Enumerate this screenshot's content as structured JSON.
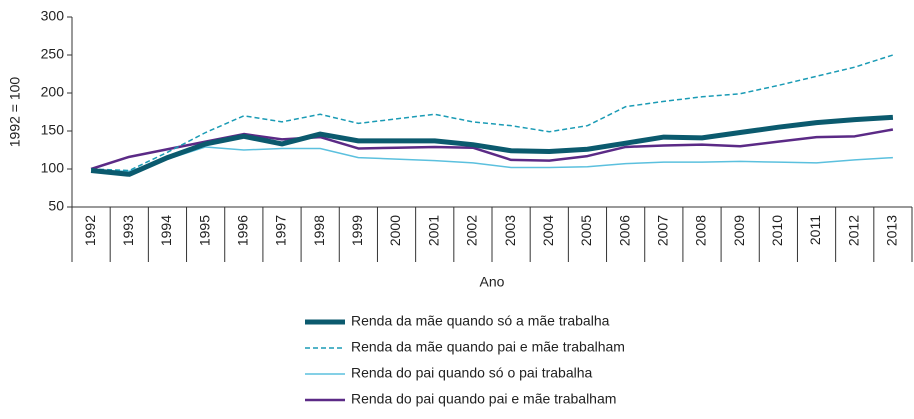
{
  "chart_data": {
    "type": "line",
    "ylabel": "1992 = 100",
    "xlabel": "Ano",
    "categories": [
      "1992",
      "1993",
      "1994",
      "1995",
      "1996",
      "1997",
      "1998",
      "1999",
      "2000",
      "2001",
      "2002",
      "2003",
      "2004",
      "2005",
      "2006",
      "2007",
      "2008",
      "2009",
      "2010",
      "2011",
      "2012",
      "2013"
    ],
    "ylim": [
      50,
      300
    ],
    "yticks": [
      50,
      100,
      150,
      200,
      250,
      300
    ],
    "grid": false,
    "legend": "bottom",
    "series": [
      {
        "name": "Renda da mãe quando só a mãe trabalha",
        "color": "#0b5a6e",
        "style": "solid",
        "width": 5,
        "values": [
          98,
          93,
          115,
          133,
          143,
          133,
          146,
          137,
          137,
          137,
          132,
          124,
          123,
          126,
          134,
          142,
          141,
          148,
          155,
          161,
          165,
          168
        ]
      },
      {
        "name": "Renda da mãe quando pai e mãe trabalham",
        "color": "#1a9bb5",
        "style": "dashed",
        "width": 1.5,
        "values": [
          100,
          98,
          122,
          148,
          170,
          162,
          172,
          160,
          166,
          172,
          162,
          157,
          149,
          157,
          182,
          189,
          195,
          199,
          210,
          222,
          234,
          250
        ]
      },
      {
        "name": "Renda do pai quando só o pai trabalha",
        "color": "#5bc0de",
        "style": "solid",
        "width": 1.5,
        "values": [
          98,
          97,
          113,
          129,
          125,
          127,
          127,
          115,
          113,
          111,
          108,
          102,
          102,
          103,
          107,
          109,
          109,
          110,
          109,
          108,
          112,
          115
        ]
      },
      {
        "name": "Renda do pai quando pai e mãe trabalham",
        "color": "#5b2a86",
        "style": "solid",
        "width": 2.5,
        "values": [
          100,
          116,
          126,
          136,
          146,
          139,
          142,
          127,
          128,
          129,
          128,
          112,
          111,
          117,
          129,
          131,
          132,
          130,
          136,
          142,
          143,
          152
        ]
      }
    ]
  }
}
